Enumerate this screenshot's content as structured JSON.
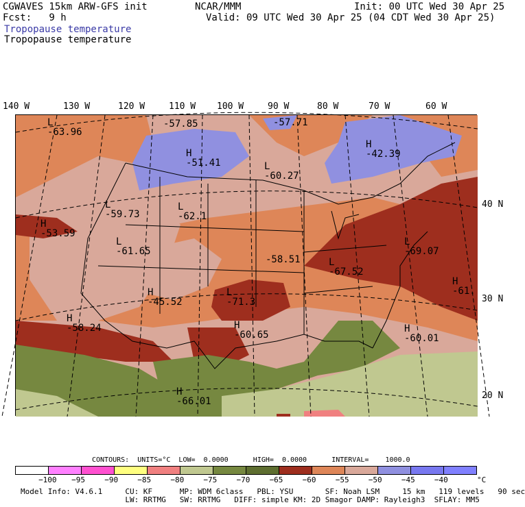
{
  "header": {
    "model": "CGWAVES 15km ARW-GFS init",
    "fcst": "Fcst:   9 h",
    "org": "NCAR/MMM",
    "init": "Init: 00 UTC Wed 30 Apr 25",
    "valid": "Valid: 09 UTC Wed 30 Apr 25 (04 CDT Wed 30 Apr 25)",
    "field_blue": "Tropopause temperature",
    "field_black": "Tropopause temperature"
  },
  "lon_labels": [
    "140 W",
    "130 W",
    "120 W",
    "110 W",
    "100 W",
    "90 W",
    "80 W",
    "70 W",
    "60 W"
  ],
  "lat_labels": [
    "40 N",
    "30 N",
    "20 N"
  ],
  "extrema": [
    {
      "type": "L",
      "value": "-63.96"
    },
    {
      "type": "",
      "value": "-57.85"
    },
    {
      "type": "L",
      "value": "-57.71"
    },
    {
      "type": "H",
      "value": "-42.39"
    },
    {
      "type": "H",
      "value": "-51.41"
    },
    {
      "type": "L",
      "value": "-60.27"
    },
    {
      "type": "H",
      "value": "-53.59"
    },
    {
      "type": "L",
      "value": "-59.73"
    },
    {
      "type": "L",
      "value": "-62.1"
    },
    {
      "type": "L",
      "value": "-61.65"
    },
    {
      "type": "",
      "value": "-58.51"
    },
    {
      "type": "L",
      "value": "-67.52"
    },
    {
      "type": "L",
      "value": "-69.07"
    },
    {
      "type": "H",
      "value": "-61."
    },
    {
      "type": "H",
      "value": "-45.52"
    },
    {
      "type": "L",
      "value": "-71.3"
    },
    {
      "type": "H",
      "value": "-58.24"
    },
    {
      "type": "H",
      "value": "-60.65"
    },
    {
      "type": "H",
      "value": "-60.01"
    },
    {
      "type": "H",
      "value": "-66.01"
    }
  ],
  "contours_line": "CONTOURS:  UNITS=°C  LOW=  0.0000      HIGH=  0.0000      INTERVAL=    1000.0",
  "legend": {
    "colors": [
      "#ffffff",
      "#ff80ff",
      "#ff50d0",
      "#ffff80",
      "#f08080",
      "#c0c890",
      "#768840",
      "#5e6e30",
      "#9e2e1e",
      "#de8658",
      "#d9a89a",
      "#9090e0",
      "#7878f0",
      "#8080ff"
    ],
    "labels": [
      "−100",
      "−95",
      "−90",
      "−85",
      "−80",
      "−75",
      "−70",
      "−65",
      "−60",
      "−55",
      "−50",
      "−45",
      "−40",
      "°C"
    ]
  },
  "footer": {
    "line1": "Model Info: V4.6.1     CU: KF      MP: WDM 6class   PBL: YSU       SF: Noah LSM     15 km   119 levels   90 sec",
    "line2": "                       LW: RRTMG   SW: RRTMG   DIFF: simple KM: 2D Smagor DAMP: Rayleigh3  SFLAY: MM5"
  }
}
